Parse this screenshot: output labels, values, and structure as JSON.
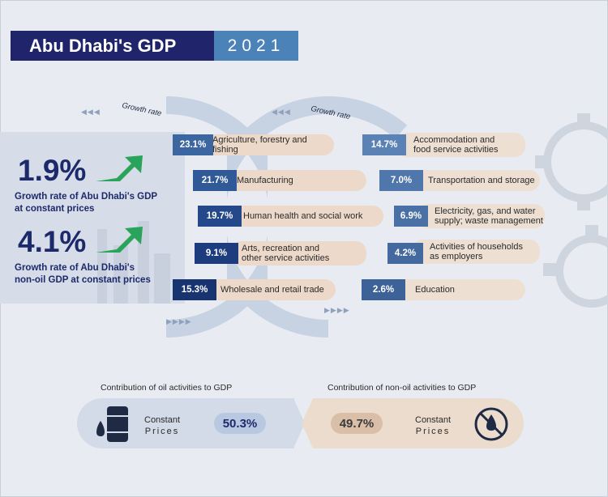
{
  "header": {
    "title": "Abu Dhabi's GDP",
    "year": "2021"
  },
  "summary": {
    "gdp_growth": "1.9%",
    "gdp_growth_label_1": "Growth rate of Abu Dhabi's GDP",
    "gdp_growth_label_2": "at constant prices",
    "nonoil_growth": "4.1%",
    "nonoil_growth_label_1": "Growth rate of Abu Dhabi's",
    "nonoil_growth_label_2": "non-oil GDP at constant prices"
  },
  "growth_rate_label": "Growth rate",
  "sectors_left": [
    {
      "value": "23.1%",
      "label": "Agriculture, forestry and fishing",
      "color": "#3c66a0"
    },
    {
      "value": "21.7%",
      "label": "Manufacturing",
      "color": "#2f5a97"
    },
    {
      "value": "19.7%",
      "label": "Human health and social work",
      "color": "#24488a"
    },
    {
      "value": "9.1%",
      "label1": "Arts, recreation and",
      "label2": "other service activities",
      "color": "#1d3c7d"
    },
    {
      "value": "15.3%",
      "label": "Wholesale and retail trade",
      "color": "#173471"
    }
  ],
  "sectors_right": [
    {
      "value": "14.7%",
      "label1": "Accommodation and",
      "label2": "food service activities",
      "color": "#5b82b4"
    },
    {
      "value": "7.0%",
      "label": "Transportation and storage",
      "color": "#5077ab"
    },
    {
      "value": "6.9%",
      "label1": "Electricity, gas, and water",
      "label2": "supply; waste management",
      "color": "#4a71a6"
    },
    {
      "value": "4.2%",
      "label1": "Activities of households",
      "label2": "as employers",
      "color": "#44699f"
    },
    {
      "value": "2.6%",
      "label": "Education",
      "color": "#3d6298"
    }
  ],
  "contribution": {
    "oil_label": "Contribution of oil activities to GDP",
    "oil_value": "50.3%",
    "nonoil_label": "Contribution of non-oil activities to GDP",
    "nonoil_value": "49.7%",
    "constant": "Constant",
    "prices": "Prices"
  },
  "icons": [
    "trend-up-arrow-icon",
    "oil-barrel-icon",
    "no-oil-icon",
    "gear-icon"
  ]
}
